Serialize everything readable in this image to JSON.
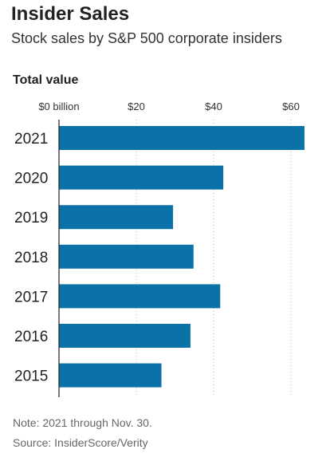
{
  "header": {
    "title": "Insider Sales",
    "subtitle": "Stock sales by S&P 500 corporate insiders"
  },
  "chart_data": {
    "type": "bar",
    "orientation": "horizontal",
    "title": "Total value",
    "categories": [
      "2021",
      "2020",
      "2019",
      "2018",
      "2017",
      "2016",
      "2015"
    ],
    "values": [
      63.5,
      42.5,
      29.5,
      34.8,
      41.7,
      34,
      26.5
    ],
    "x_ticks": [
      0,
      20,
      40,
      60
    ],
    "x_tick_labels": [
      "$0 billion",
      "$20",
      "$40",
      "$60"
    ],
    "xlim": [
      0,
      64
    ],
    "grid": true,
    "bar_color": "#0b72a8"
  },
  "footer": {
    "note": "Note: 2021 through Nov. 30.",
    "source": "Source: InsiderScore/Verity"
  }
}
